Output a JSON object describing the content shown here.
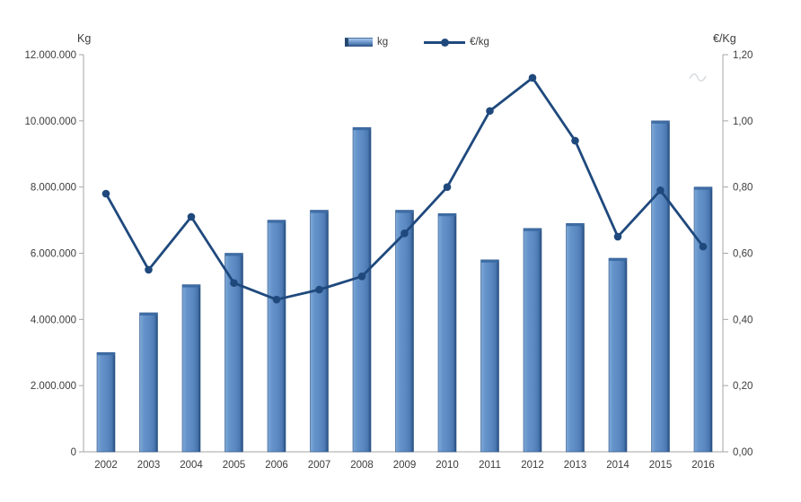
{
  "chart_data": {
    "type": "bar",
    "subtype": "combo-bar-line",
    "title": "",
    "categories": [
      "2002",
      "2003",
      "2004",
      "2005",
      "2006",
      "2007",
      "2008",
      "2009",
      "2010",
      "2011",
      "2012",
      "2013",
      "2014",
      "2015",
      "2016"
    ],
    "series": [
      {
        "name": "kg",
        "type": "bar",
        "axis": "left",
        "values": [
          3000000,
          4200000,
          5050000,
          6000000,
          7000000,
          7300000,
          9800000,
          7300000,
          7200000,
          5800000,
          6750000,
          6900000,
          5850000,
          10000000,
          8000000
        ]
      },
      {
        "name": "€/kg",
        "type": "line",
        "axis": "right",
        "values": [
          0.78,
          0.55,
          0.71,
          0.51,
          0.46,
          0.49,
          0.53,
          0.66,
          0.8,
          1.03,
          1.13,
          0.94,
          0.65,
          0.79,
          0.62
        ]
      }
    ],
    "left_axis": {
      "title": "Kg",
      "min": 0,
      "max": 12000000,
      "tick_step": 2000000,
      "tick_labels": [
        "0",
        "2.000.000",
        "4.000.000",
        "6.000.000",
        "8.000.000",
        "10.000.000",
        "12.000.000"
      ]
    },
    "right_axis": {
      "title": "€/Kg",
      "min": 0,
      "max": 1.2,
      "tick_step": 0.2,
      "tick_labels": [
        "0,00",
        "0,20",
        "0,40",
        "0,60",
        "0,80",
        "1,00",
        "1,20"
      ]
    },
    "legend": {
      "position": "top-center",
      "entries": [
        {
          "label": "kg",
          "type": "bar"
        },
        {
          "label": "€/kg",
          "type": "line"
        }
      ]
    },
    "grid": false
  },
  "colors": {
    "bar_highlight": "#7FA9D8",
    "bar_fill": "#5B87C0",
    "bar_shadow": "#2E578C",
    "bar_edge": "#274A70",
    "bar_border": "#2d5384",
    "bar_cap": "#3b69a2",
    "line": "#1F497D",
    "axis": "#a6a6a6",
    "text": "#3c3c3c",
    "background": "#ffffff",
    "watermark": "#cfd3d8"
  }
}
